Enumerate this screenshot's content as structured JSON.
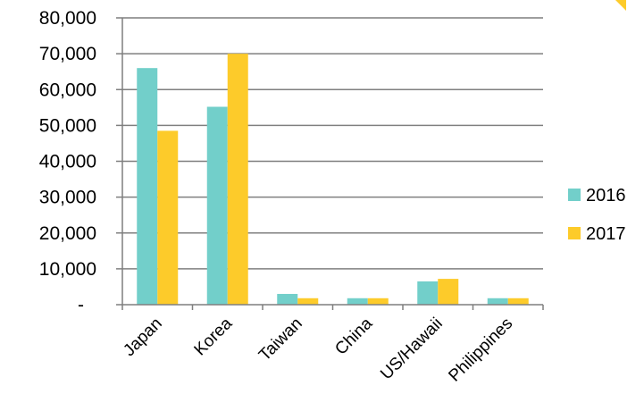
{
  "colors": {
    "series_2016": "#72CFCA",
    "series_2017": "#FDCB2A",
    "gridline": "#7f7f7f",
    "axis": "#7f7f7f",
    "corner_accent": "#FDCB2A"
  },
  "chart_data": {
    "type": "bar",
    "title": "",
    "xlabel": "",
    "ylabel": "",
    "categories": [
      "Japan",
      "Korea",
      "Taiwan",
      "China",
      "US/Hawaii",
      "Philippines"
    ],
    "series": [
      {
        "name": "2016",
        "values": [
          66000,
          55200,
          3000,
          1800,
          6500,
          1800
        ]
      },
      {
        "name": "2017",
        "values": [
          48500,
          70000,
          1800,
          1800,
          7200,
          1800
        ]
      }
    ],
    "ylim": [
      0,
      80000
    ],
    "yticks": [
      0,
      10000,
      20000,
      30000,
      40000,
      50000,
      60000,
      70000,
      80000
    ],
    "ytick_labels": [
      "-",
      "10,000",
      "20,000",
      "30,000",
      "40,000",
      "50,000",
      "60,000",
      "70,000",
      "80,000"
    ],
    "grid": true,
    "legend_position": "right"
  }
}
